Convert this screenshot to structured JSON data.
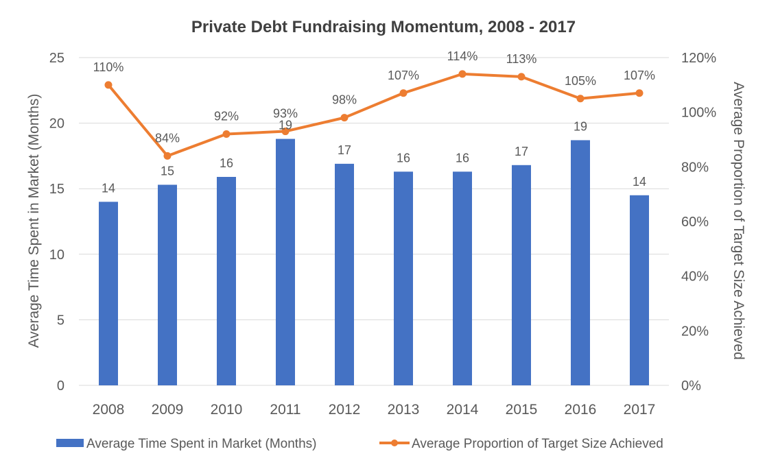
{
  "chart_data": {
    "type": "bar",
    "title": "Private Debt Fundraising Momentum, 2008 - 2017",
    "categories": [
      "2008",
      "2009",
      "2010",
      "2011",
      "2012",
      "2013",
      "2014",
      "2015",
      "2016",
      "2017"
    ],
    "series": [
      {
        "name": "Average Time Spent in Market (Months)",
        "type": "bar",
        "axis": "left",
        "values": [
          14.0,
          15.3,
          15.9,
          18.8,
          16.9,
          16.3,
          16.3,
          16.8,
          18.7,
          14.5
        ],
        "labels": [
          "14",
          "15",
          "16",
          "19",
          "17",
          "16",
          "16",
          "17",
          "19",
          "14"
        ],
        "color": "#4472C4"
      },
      {
        "name": "Average Proportion of Target Size Achieved",
        "type": "line",
        "axis": "right",
        "values": [
          110,
          84,
          92,
          93,
          98,
          107,
          114,
          113,
          105,
          107
        ],
        "labels": [
          "110%",
          "84%",
          "92%",
          "93%",
          "98%",
          "107%",
          "114%",
          "113%",
          "105%",
          "107%"
        ],
        "color": "#ED7D31"
      }
    ],
    "ylabel_left": "Average Time Spent in Market (Months)",
    "ylabel_right": "Average Proportion of Target Size Achieved",
    "ylim_left": [
      0,
      25
    ],
    "yticks_left": [
      "0",
      "5",
      "10",
      "15",
      "20",
      "25"
    ],
    "ylim_right": [
      0,
      120
    ],
    "yticks_right": [
      "0%",
      "20%",
      "40%",
      "60%",
      "80%",
      "100%",
      "120%"
    ],
    "grid": true,
    "legend_position": "bottom",
    "colors": {
      "grid": "#D9D9D9",
      "text": "#595959",
      "title": "#404040"
    }
  }
}
